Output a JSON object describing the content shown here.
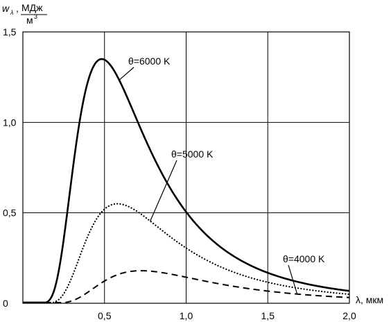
{
  "chart_data": {
    "type": "line",
    "ylabel": {
      "symbol": "w",
      "subscript": "λ",
      "sep": ",",
      "numerator": "МДж",
      "denominator": "м",
      "denominator_sup": "3"
    },
    "xlabel": "λ, мкм",
    "xlim": [
      0,
      2.0
    ],
    "ylim": [
      0,
      1.5
    ],
    "grid": true,
    "x_ticks": [
      {
        "v": 0.5,
        "label": "0,5"
      },
      {
        "v": 1.0,
        "label": "1,0"
      },
      {
        "v": 1.5,
        "label": "1,5"
      },
      {
        "v": 2.0,
        "label": "2,0"
      }
    ],
    "y_ticks": [
      {
        "v": 0,
        "label": "0"
      },
      {
        "v": 0.5,
        "label": "0,5"
      },
      {
        "v": 1.0,
        "label": "1,0"
      },
      {
        "v": 1.5,
        "label": "1,5"
      }
    ],
    "series": [
      {
        "name": "θ=6000 K",
        "temperature": 6000,
        "peak": 1.35,
        "style": "solid"
      },
      {
        "name": "θ=5000 K",
        "temperature": 5000,
        "peak": 0.55,
        "style": "dotted"
      },
      {
        "name": "θ=4000 K",
        "temperature": 4000,
        "peak": 0.18,
        "style": "dashed"
      }
    ],
    "annotations": [
      {
        "series": 0,
        "text": "θ=6000 K",
        "at_x": 0.59
      },
      {
        "series": 1,
        "text": "θ=5000 K",
        "at_x": 0.78
      },
      {
        "series": 2,
        "text": "θ=4000 K",
        "at_x": 1.68
      }
    ]
  }
}
